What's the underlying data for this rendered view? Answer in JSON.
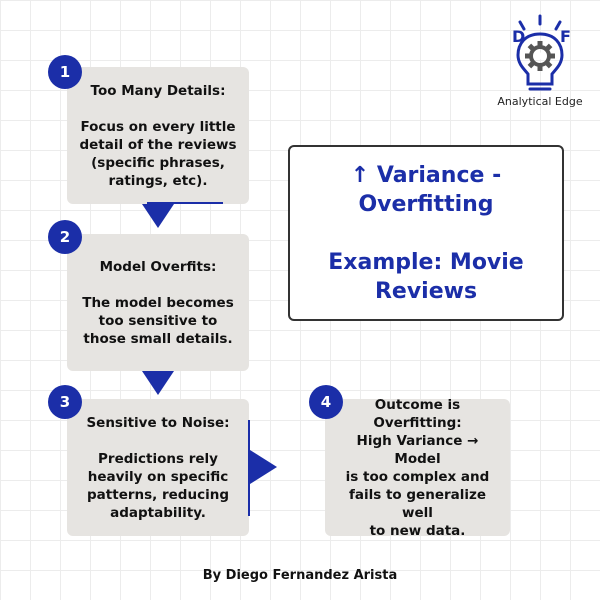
{
  "logo": {
    "letter_left": "D",
    "letter_right": "F",
    "caption": "Analytical Edge"
  },
  "steps": [
    {
      "number": "1",
      "title": "Too Many Details:",
      "body_lines": [
        "Focus on every little",
        "detail of the reviews",
        "(specific phrases,",
        "ratings, etc)."
      ]
    },
    {
      "number": "2",
      "title": "Model Overfits:",
      "body_lines": [
        "The model becomes",
        "too sensitive to",
        "those small details."
      ]
    },
    {
      "number": "3",
      "title": "Sensitive to Noise:",
      "body_lines": [
        "Predictions rely",
        "heavily on specific",
        "patterns, reducing",
        "adaptability."
      ]
    },
    {
      "number": "4",
      "title_lines": [
        "Outcome is",
        "Overfitting:"
      ],
      "body_lines": [
        "High Variance → Model",
        "is too complex and",
        "fails to generalize well",
        "to new data."
      ]
    }
  ],
  "title_box": {
    "lines": [
      "↑ Variance -",
      "Overfitting"
    ],
    "example_lines": [
      "Example: Movie",
      "Reviews"
    ]
  },
  "credit": "By Diego Fernandez Arista",
  "colors": {
    "accent": "#1b2ea8",
    "card": "#e6e4e1",
    "grid": "#ececec"
  }
}
